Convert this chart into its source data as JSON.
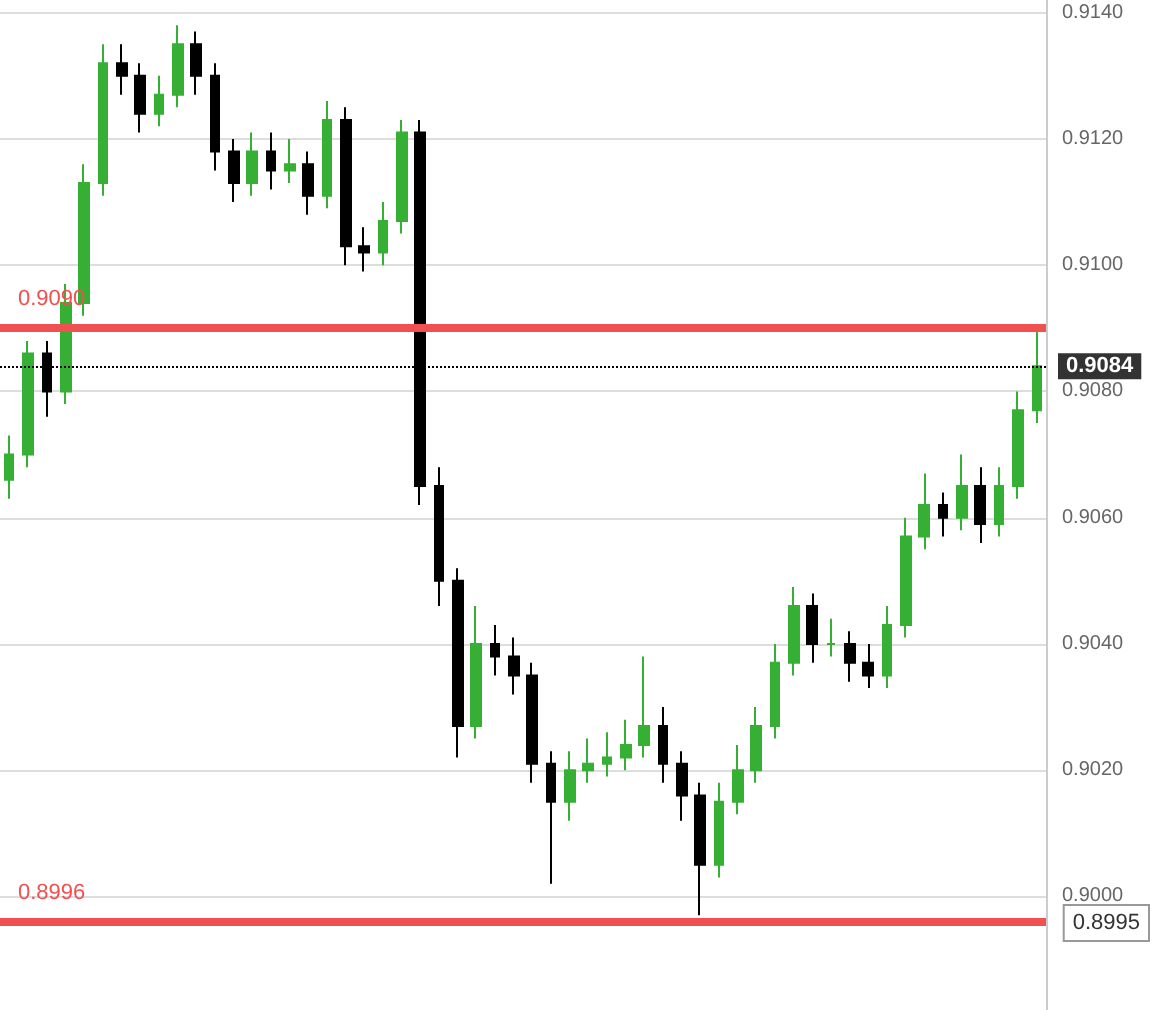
{
  "chart_data": {
    "type": "candlestick",
    "categories": [
      null,
      null,
      null,
      null,
      null,
      null,
      null,
      null,
      null,
      null,
      null,
      null,
      null,
      null,
      null,
      null,
      null,
      null,
      null,
      null,
      null,
      null,
      null,
      null,
      null,
      null,
      null,
      null,
      null,
      null,
      null,
      null,
      null,
      null,
      null,
      null,
      null,
      null,
      null,
      null,
      null,
      null,
      null,
      null,
      null,
      null,
      null,
      null,
      null,
      null,
      null,
      null,
      null,
      null,
      null,
      null
    ],
    "ohlc": [
      [
        0.9066,
        0.9073,
        0.9063,
        0.907
      ],
      [
        0.907,
        0.9088,
        0.9068,
        0.9086
      ],
      [
        0.9086,
        0.9088,
        0.9076,
        0.908
      ],
      [
        0.908,
        0.9097,
        0.9078,
        0.9094
      ],
      [
        0.9094,
        0.9116,
        0.9092,
        0.9113
      ],
      [
        0.9113,
        0.9135,
        0.9111,
        0.9132
      ],
      [
        0.9132,
        0.9135,
        0.9127,
        0.913
      ],
      [
        0.913,
        0.9132,
        0.9121,
        0.9124
      ],
      [
        0.9124,
        0.913,
        0.9122,
        0.9127
      ],
      [
        0.9127,
        0.9138,
        0.9125,
        0.9135
      ],
      [
        0.9135,
        0.9137,
        0.9127,
        0.913
      ],
      [
        0.913,
        0.9132,
        0.9115,
        0.9118
      ],
      [
        0.9118,
        0.912,
        0.911,
        0.9113
      ],
      [
        0.9113,
        0.9121,
        0.9111,
        0.9118
      ],
      [
        0.9118,
        0.9121,
        0.9112,
        0.9115
      ],
      [
        0.9115,
        0.912,
        0.9113,
        0.9116
      ],
      [
        0.9116,
        0.9118,
        0.9108,
        0.9111
      ],
      [
        0.9111,
        0.9126,
        0.9109,
        0.9123
      ],
      [
        0.9123,
        0.9125,
        0.91,
        0.9103
      ],
      [
        0.9103,
        0.9106,
        0.9099,
        0.9102
      ],
      [
        0.9102,
        0.911,
        0.91,
        0.9107
      ],
      [
        0.9107,
        0.9123,
        0.9105,
        0.9121
      ],
      [
        0.9121,
        0.9123,
        0.9062,
        0.9065
      ],
      [
        0.9065,
        0.9068,
        0.9046,
        0.905
      ],
      [
        0.905,
        0.9052,
        0.9022,
        0.9027
      ],
      [
        0.9027,
        0.9046,
        0.9025,
        0.904
      ],
      [
        0.904,
        0.9043,
        0.9035,
        0.9038
      ],
      [
        0.9038,
        0.9041,
        0.9032,
        0.9035
      ],
      [
        0.9035,
        0.9037,
        0.9018,
        0.9021
      ],
      [
        0.9021,
        0.9023,
        0.9002,
        0.9015
      ],
      [
        0.9015,
        0.9023,
        0.9012,
        0.902
      ],
      [
        0.902,
        0.9025,
        0.9018,
        0.9021
      ],
      [
        0.9021,
        0.9026,
        0.9019,
        0.9022
      ],
      [
        0.9022,
        0.9028,
        0.902,
        0.9024
      ],
      [
        0.9024,
        0.9038,
        0.9022,
        0.9027
      ],
      [
        0.9027,
        0.903,
        0.9018,
        0.9021
      ],
      [
        0.9021,
        0.9023,
        0.9012,
        0.9016
      ],
      [
        0.9016,
        0.9018,
        0.8997,
        0.9005
      ],
      [
        0.9005,
        0.9018,
        0.9003,
        0.9015
      ],
      [
        0.9015,
        0.9024,
        0.9013,
        0.902
      ],
      [
        0.902,
        0.903,
        0.9018,
        0.9027
      ],
      [
        0.9027,
        0.904,
        0.9025,
        0.9037
      ],
      [
        0.9037,
        0.9049,
        0.9035,
        0.9046
      ],
      [
        0.9046,
        0.9048,
        0.9037,
        0.904
      ],
      [
        0.904,
        0.9044,
        0.9038,
        0.904
      ],
      [
        0.904,
        0.9042,
        0.9034,
        0.9037
      ],
      [
        0.9037,
        0.904,
        0.9033,
        0.9035
      ],
      [
        0.9035,
        0.9046,
        0.9033,
        0.9043
      ],
      [
        0.9043,
        0.906,
        0.9041,
        0.9057
      ],
      [
        0.9057,
        0.9067,
        0.9055,
        0.9062
      ],
      [
        0.9062,
        0.9064,
        0.9057,
        0.906
      ],
      [
        0.906,
        0.907,
        0.9058,
        0.9065
      ],
      [
        0.9065,
        0.9068,
        0.9056,
        0.9059
      ],
      [
        0.9059,
        0.9068,
        0.9057,
        0.9065
      ],
      [
        0.9065,
        0.908,
        0.9063,
        0.9077
      ],
      [
        0.9077,
        0.909,
        0.9075,
        0.9084
      ]
    ],
    "ylim": [
      0.8982,
      0.9142
    ],
    "yticks": [
      {
        "value": 0.9,
        "label": "0.9000"
      },
      {
        "value": 0.902,
        "label": "0.9020"
      },
      {
        "value": 0.904,
        "label": "0.9040"
      },
      {
        "value": 0.906,
        "label": "0.9060"
      },
      {
        "value": 0.908,
        "label": "0.9080"
      },
      {
        "value": 0.91,
        "label": "0.9100"
      },
      {
        "value": 0.912,
        "label": "0.9120"
      },
      {
        "value": 0.914,
        "label": "0.9140"
      }
    ],
    "tick_labels": "y",
    "grid": "y",
    "ref_lines": [
      {
        "axis": "y",
        "value": 0.909,
        "label": "0.9090",
        "color": "#f05050",
        "line_style": "solid"
      },
      {
        "axis": "y",
        "value": 0.8996,
        "label": "0.8996",
        "color": "#f05050",
        "line_style": "solid"
      },
      {
        "axis": "y",
        "value": 0.9084,
        "label": "0.9084",
        "color": "#000000",
        "line_style": "dotted"
      }
    ],
    "annotations": [
      "0.8995"
    ]
  }
}
